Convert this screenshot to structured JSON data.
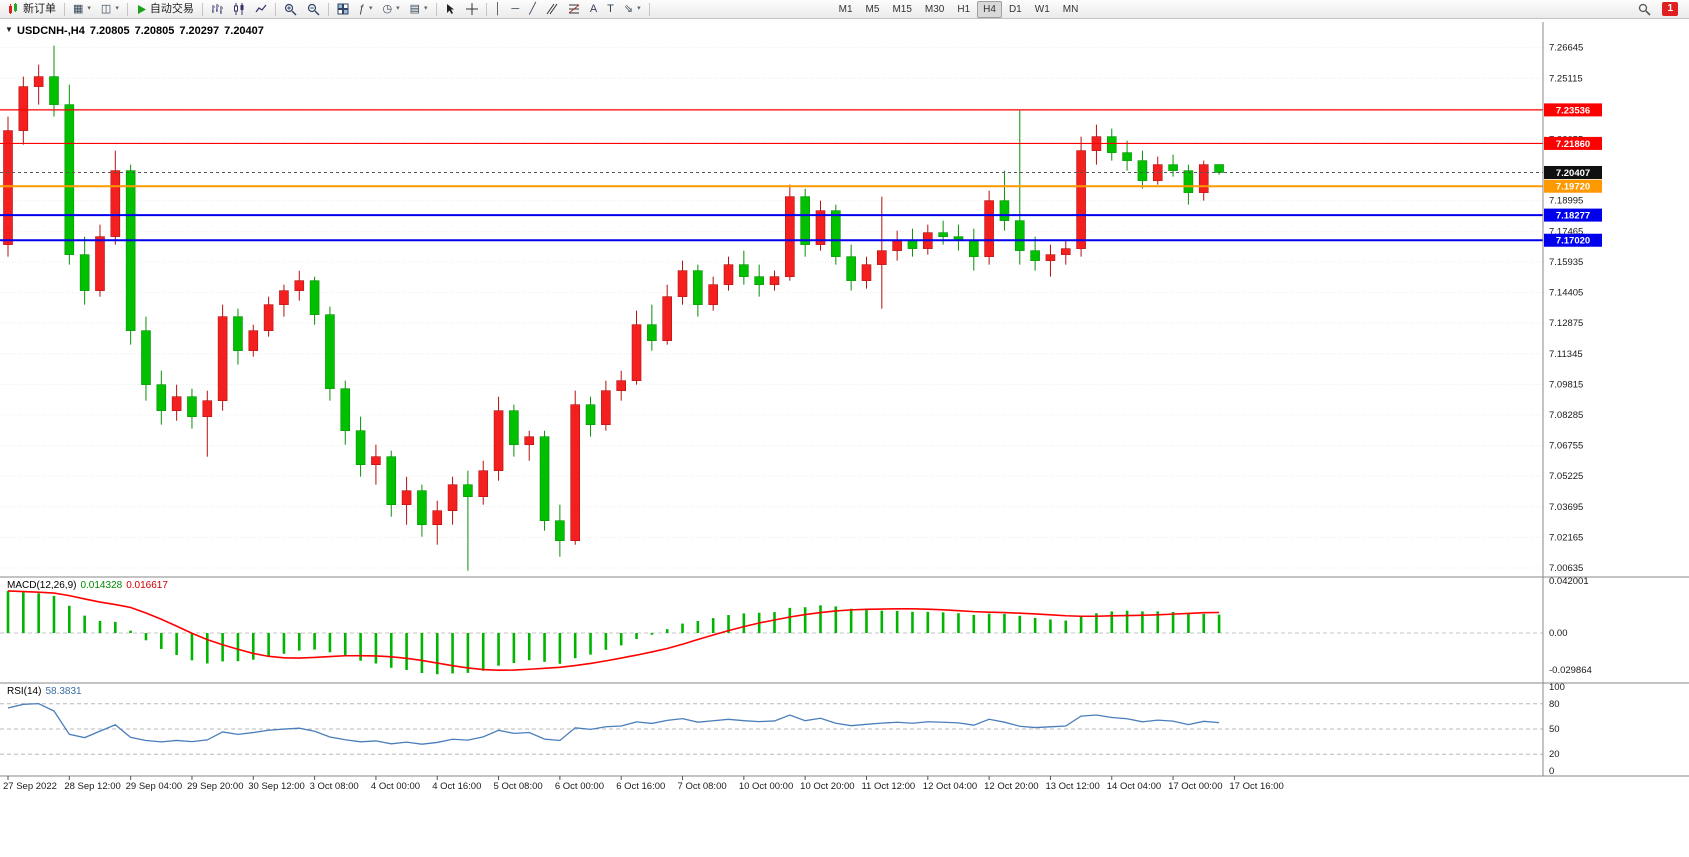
{
  "toolbar": {
    "new_order_label": "新订单",
    "auto_trading_label": "自动交易",
    "timeframes": [
      "M1",
      "M5",
      "M15",
      "M30",
      "H1",
      "H4",
      "D1",
      "W1",
      "MN"
    ],
    "active_timeframe": "H4",
    "notification_count": "1"
  },
  "chart": {
    "symbol_period": "USDCNH-,H4",
    "open": "7.20805",
    "high": "7.20805",
    "low": "7.20297",
    "close": "7.20407"
  },
  "macd": {
    "label": "MACD(12,26,9)",
    "value": "0.014328",
    "signal_value": "0.016617"
  },
  "rsi": {
    "label": "RSI(14)",
    "value": "58.3831"
  },
  "chart_data": {
    "type": "candlestick",
    "symbol": "USDCNH-",
    "timeframe": "H4",
    "ohlc_display": {
      "open": 7.20805,
      "high": 7.20805,
      "low": 7.20297,
      "close": 7.20407
    },
    "price_axis_labels": [
      "7.26645",
      "7.25115",
      "7.23585",
      "7.22055",
      "7.20525",
      "7.18995",
      "7.17465",
      "7.15935",
      "7.14405",
      "7.12875",
      "7.11345",
      "7.09815",
      "7.08285",
      "7.06755",
      "7.05225",
      "7.03695",
      "7.02165",
      "7.00635"
    ],
    "hlines": [
      {
        "price": 7.23536,
        "label": "7.23536",
        "color": "#ff0000",
        "width": 1.2
      },
      {
        "price": 7.2186,
        "label": "7.21860",
        "color": "#ff0000",
        "width": 1.2
      },
      {
        "price": 7.1972,
        "label": "7.19720",
        "color": "#ff9900",
        "width": 2
      },
      {
        "price": 7.18277,
        "label": "7.18277",
        "color": "#0000ee",
        "width": 2
      },
      {
        "price": 7.1702,
        "label": "7.17020",
        "color": "#0000ee",
        "width": 2
      }
    ],
    "current_price": {
      "value": 7.20407,
      "label": "7.20407",
      "badge_color": "#101010"
    },
    "candles": [
      [
        7.168,
        7.232,
        7.162,
        7.225
      ],
      [
        7.225,
        7.252,
        7.218,
        7.247
      ],
      [
        7.247,
        7.258,
        7.238,
        7.252
      ],
      [
        7.252,
        7.2675,
        7.232,
        7.238
      ],
      [
        7.238,
        7.248,
        7.158,
        7.163
      ],
      [
        7.163,
        7.172,
        7.138,
        7.145
      ],
      [
        7.145,
        7.178,
        7.142,
        7.172
      ],
      [
        7.172,
        7.215,
        7.168,
        7.205
      ],
      [
        7.205,
        7.208,
        7.118,
        7.125
      ],
      [
        7.125,
        7.132,
        7.09,
        7.098
      ],
      [
        7.098,
        7.105,
        7.078,
        7.085
      ],
      [
        7.085,
        7.098,
        7.08,
        7.092
      ],
      [
        7.092,
        7.096,
        7.076,
        7.082
      ],
      [
        7.082,
        7.095,
        7.062,
        7.09
      ],
      [
        7.09,
        7.138,
        7.085,
        7.132
      ],
      [
        7.132,
        7.136,
        7.108,
        7.115
      ],
      [
        7.115,
        7.128,
        7.112,
        7.125
      ],
      [
        7.125,
        7.142,
        7.122,
        7.138
      ],
      [
        7.138,
        7.148,
        7.132,
        7.145
      ],
      [
        7.145,
        7.155,
        7.14,
        7.15
      ],
      [
        7.15,
        7.152,
        7.128,
        7.133
      ],
      [
        7.133,
        7.137,
        7.09,
        7.096
      ],
      [
        7.096,
        7.1,
        7.068,
        7.075
      ],
      [
        7.075,
        7.082,
        7.052,
        7.058
      ],
      [
        7.058,
        7.068,
        7.048,
        7.062
      ],
      [
        7.062,
        7.065,
        7.032,
        7.038
      ],
      [
        7.038,
        7.052,
        7.028,
        7.045
      ],
      [
        7.045,
        7.048,
        7.022,
        7.028
      ],
      [
        7.028,
        7.04,
        7.018,
        7.035
      ],
      [
        7.035,
        7.052,
        7.028,
        7.048
      ],
      [
        7.048,
        7.055,
        7.005,
        7.042
      ],
      [
        7.042,
        7.06,
        7.038,
        7.055
      ],
      [
        7.055,
        7.092,
        7.05,
        7.085
      ],
      [
        7.085,
        7.088,
        7.062,
        7.068
      ],
      [
        7.068,
        7.075,
        7.06,
        7.072
      ],
      [
        7.072,
        7.075,
        7.025,
        7.03
      ],
      [
        7.03,
        7.038,
        7.012,
        7.02
      ],
      [
        7.02,
        7.095,
        7.018,
        7.088
      ],
      [
        7.088,
        7.092,
        7.072,
        7.078
      ],
      [
        7.078,
        7.1,
        7.075,
        7.095
      ],
      [
        7.095,
        7.105,
        7.09,
        7.1
      ],
      [
        7.1,
        7.135,
        7.098,
        7.128
      ],
      [
        7.128,
        7.138,
        7.115,
        7.12
      ],
      [
        7.12,
        7.148,
        7.118,
        7.142
      ],
      [
        7.142,
        7.16,
        7.138,
        7.155
      ],
      [
        7.155,
        7.158,
        7.132,
        7.138
      ],
      [
        7.138,
        7.152,
        7.135,
        7.148
      ],
      [
        7.148,
        7.162,
        7.145,
        7.158
      ],
      [
        7.158,
        7.165,
        7.148,
        7.152
      ],
      [
        7.152,
        7.158,
        7.142,
        7.148
      ],
      [
        7.148,
        7.155,
        7.145,
        7.152
      ],
      [
        7.152,
        7.198,
        7.15,
        7.192
      ],
      [
        7.192,
        7.196,
        7.162,
        7.168
      ],
      [
        7.168,
        7.19,
        7.165,
        7.185
      ],
      [
        7.185,
        7.188,
        7.158,
        7.162
      ],
      [
        7.162,
        7.168,
        7.145,
        7.15
      ],
      [
        7.15,
        7.162,
        7.146,
        7.158
      ],
      [
        7.158,
        7.192,
        7.136,
        7.165
      ],
      [
        7.165,
        7.175,
        7.16,
        7.17
      ],
      [
        7.17,
        7.176,
        7.162,
        7.166
      ],
      [
        7.166,
        7.178,
        7.163,
        7.174
      ],
      [
        7.174,
        7.18,
        7.168,
        7.172
      ],
      [
        7.172,
        7.178,
        7.165,
        7.17
      ],
      [
        7.17,
        7.176,
        7.155,
        7.162
      ],
      [
        7.162,
        7.195,
        7.158,
        7.19
      ],
      [
        7.19,
        7.205,
        7.175,
        7.18
      ],
      [
        7.18,
        7.235,
        7.158,
        7.165
      ],
      [
        7.165,
        7.172,
        7.155,
        7.16
      ],
      [
        7.16,
        7.168,
        7.152,
        7.163
      ],
      [
        7.163,
        7.17,
        7.158,
        7.166
      ],
      [
        7.166,
        7.222,
        7.162,
        7.215
      ],
      [
        7.215,
        7.228,
        7.208,
        7.222
      ],
      [
        7.222,
        7.226,
        7.21,
        7.214
      ],
      [
        7.214,
        7.22,
        7.205,
        7.21
      ],
      [
        7.21,
        7.215,
        7.196,
        7.2
      ],
      [
        7.2,
        7.212,
        7.198,
        7.208
      ],
      [
        7.208,
        7.213,
        7.202,
        7.205
      ],
      [
        7.205,
        7.208,
        7.188,
        7.194
      ],
      [
        7.194,
        7.21,
        7.19,
        7.208
      ],
      [
        7.20805,
        7.20805,
        7.20297,
        7.20407
      ]
    ],
    "time_labels": [
      [
        0,
        "27 Sep 2022"
      ],
      [
        4,
        "28 Sep 12:00"
      ],
      [
        8,
        "29 Sep 04:00"
      ],
      [
        12,
        "29 Sep 20:00"
      ],
      [
        16,
        "30 Sep 12:00"
      ],
      [
        20,
        "3 Oct 08:00"
      ],
      [
        24,
        "4 Oct 00:00"
      ],
      [
        28,
        "4 Oct 16:00"
      ],
      [
        32,
        "5 Oct 08:00"
      ],
      [
        36,
        "6 Oct 00:00"
      ],
      [
        40,
        "6 Oct 16:00"
      ],
      [
        44,
        "7 Oct 08:00"
      ],
      [
        48,
        "10 Oct 00:00"
      ],
      [
        52,
        "10 Oct 20:00"
      ],
      [
        56,
        "11 Oct 12:00"
      ],
      [
        60,
        "12 Oct 04:00"
      ],
      [
        64,
        "12 Oct 20:00"
      ],
      [
        68,
        "13 Oct 12:00"
      ],
      [
        72,
        "14 Oct 04:00"
      ],
      [
        76,
        "17 Oct 00:00"
      ],
      [
        80,
        "17 Oct 16:00"
      ]
    ],
    "macd_panel": {
      "name": "MACD",
      "params": [
        12,
        26,
        9
      ],
      "value": 0.014328,
      "signal": 0.016617,
      "axis_labels": [
        "0.042001",
        "0.00",
        "-0.029864"
      ],
      "axis_values": [
        0.042001,
        0,
        -0.029864
      ],
      "hist_color": "#00b400",
      "signal_color": "#ff0000"
    },
    "rsi_panel": {
      "name": "RSI",
      "period": 14,
      "value": 58.3831,
      "levels": [
        80,
        50,
        20
      ],
      "axis_labels": [
        "100",
        "80",
        "50",
        "20",
        "0"
      ],
      "axis_values": [
        100,
        80,
        50,
        20,
        0
      ],
      "line_color": "#4a7ebb"
    },
    "colors": {
      "bull": "#f42020",
      "bull_stroke": "#b31010",
      "bear": "#00c000",
      "bear_stroke": "#089008",
      "grid": "#ececec",
      "separator": "#8a8a8a",
      "axis_text": "#1a1a1a"
    }
  }
}
